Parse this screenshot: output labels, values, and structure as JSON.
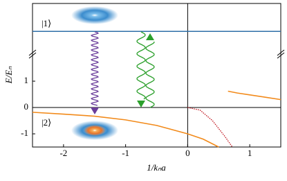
{
  "chart_data": {
    "type": "line",
    "xlabel": "1/kₙa",
    "ylabel": "E/Eₙ",
    "xlim": [
      -2.5,
      1.5
    ],
    "ylim": [
      -1.5,
      3.95
    ],
    "xticks": [
      -2,
      -1,
      0,
      1
    ],
    "yticks": [
      -1,
      0,
      1
    ],
    "annotations": [
      "|1⟩",
      "|2⟩"
    ],
    "lines": [
      {
        "color": "#2f6fa8",
        "style": "solid",
        "x": [
          -2.5,
          1.5
        ],
        "y": [
          2.89,
          2.89
        ]
      },
      {
        "color": "#f28a1a",
        "style": "solid",
        "x": [
          -2.5,
          -2,
          -1.5,
          -1,
          -0.5,
          0,
          0.25,
          0.5
        ],
        "y": [
          -0.18,
          -0.25,
          -0.33,
          -0.47,
          -0.68,
          -1.0,
          -1.2,
          -1.5
        ]
      },
      {
        "color": "#f28a1a",
        "style": "solid",
        "x": [
          0.65,
          0.8,
          1.0,
          1.25,
          1.5
        ],
        "y": [
          0.62,
          0.55,
          0.48,
          0.39,
          0.3
        ]
      },
      {
        "color": "#c0141e",
        "style": "dotted",
        "x": [
          0,
          0.2,
          0.4,
          0.6,
          0.72
        ],
        "y": [
          0,
          -0.1,
          -0.5,
          -1.1,
          -1.5
        ]
      }
    ]
  }
}
